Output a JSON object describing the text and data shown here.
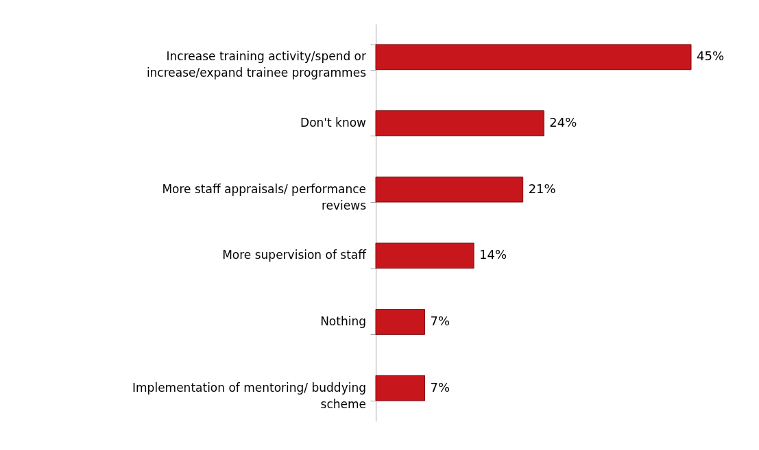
{
  "chart_data": {
    "type": "bar",
    "orientation": "horizontal",
    "categories": [
      "Increase training activity/spend or increase/expand trainee programmes",
      "Don't know",
      "More staff appraisals/ performance reviews",
      "More supervision of staff",
      "Nothing",
      "Implementation of mentoring/ buddying scheme"
    ],
    "values": [
      45,
      24,
      21,
      14,
      7,
      7
    ],
    "value_labels": [
      "45%",
      "24%",
      "21%",
      "14%",
      "7%",
      "7%"
    ],
    "color": "#c8161d"
  }
}
